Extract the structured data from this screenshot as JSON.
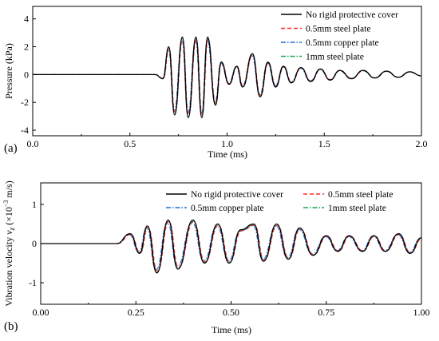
{
  "figure": {
    "panel_a": "(a)",
    "panel_b": "(b)"
  },
  "chart_data": [
    {
      "type": "line",
      "xlabel": "Time (ms)",
      "ylabel": "Pressure (kPa)",
      "xlim": [
        0.0,
        2.0
      ],
      "ylim": [
        -4.4,
        4.9
      ],
      "xticks": [
        "0.0",
        "0.5",
        "1.0",
        "1.5",
        "2.0"
      ],
      "yticks": [
        "4",
        "2",
        "0",
        "-2",
        "-4"
      ],
      "ytick_values": [
        4,
        2,
        0,
        -2,
        -4
      ],
      "xtick_values": [
        0.0,
        0.5,
        1.0,
        1.5,
        2.0
      ],
      "legend_position": "top-right",
      "series": [
        {
          "name": "No rigid protective cover",
          "color": "#000000",
          "dash": "solid"
        },
        {
          "name": "0.5mm steel plate",
          "color": "#ff2a2a",
          "dash": "dashed"
        },
        {
          "name": "0.5mm copper plate",
          "color": "#1f6fd1",
          "dash": "dashdot"
        },
        {
          "name": "1mm steel plate",
          "color": "#1aa35a",
          "dash": "dashdot"
        }
      ],
      "peaks": [
        {
          "x": 0.63,
          "y": 0.0
        },
        {
          "x": 0.67,
          "y": -0.3
        },
        {
          "x": 0.7,
          "y": 2.0
        },
        {
          "x": 0.73,
          "y": -2.9
        },
        {
          "x": 0.77,
          "y": 2.7
        },
        {
          "x": 0.8,
          "y": -3.1
        },
        {
          "x": 0.84,
          "y": 2.7
        },
        {
          "x": 0.87,
          "y": -3.1
        },
        {
          "x": 0.9,
          "y": 2.7
        },
        {
          "x": 0.94,
          "y": -2.2
        },
        {
          "x": 0.97,
          "y": 0.9
        },
        {
          "x": 1.01,
          "y": -0.7
        },
        {
          "x": 1.05,
          "y": 0.6
        },
        {
          "x": 1.08,
          "y": -0.9
        },
        {
          "x": 1.13,
          "y": 1.5
        },
        {
          "x": 1.17,
          "y": -1.6
        },
        {
          "x": 1.21,
          "y": 0.9
        },
        {
          "x": 1.25,
          "y": -0.9
        },
        {
          "x": 1.29,
          "y": 0.6
        },
        {
          "x": 1.33,
          "y": -0.6
        },
        {
          "x": 1.38,
          "y": 0.5
        },
        {
          "x": 1.43,
          "y": -0.5
        },
        {
          "x": 1.48,
          "y": 0.4
        },
        {
          "x": 1.53,
          "y": -0.4
        },
        {
          "x": 1.58,
          "y": 0.3
        },
        {
          "x": 1.64,
          "y": -0.3
        },
        {
          "x": 1.7,
          "y": 0.3
        },
        {
          "x": 1.76,
          "y": -0.25
        },
        {
          "x": 1.82,
          "y": 0.25
        },
        {
          "x": 1.88,
          "y": -0.2
        },
        {
          "x": 1.94,
          "y": 0.2
        },
        {
          "x": 2.0,
          "y": -0.1
        }
      ]
    },
    {
      "type": "line",
      "xlabel": "Time (ms)",
      "ylabel": "Vibration velocity v_z (×10⁻³ m/s)",
      "ylabel_main": "Vibration velocity ",
      "ylabel_var": "v",
      "ylabel_sub": "z",
      "ylabel_unit": " (×10",
      "ylabel_exp": "−3",
      "ylabel_end": " m/s)",
      "xlim": [
        0.0,
        1.0
      ],
      "ylim": [
        -1.55,
        1.55
      ],
      "xticks": [
        "0.00",
        "0.25",
        "0.50",
        "0.75",
        "1.00"
      ],
      "xtick_values": [
        0.0,
        0.25,
        0.5,
        0.75,
        1.0
      ],
      "yticks": [
        "1",
        "0",
        "-1"
      ],
      "ytick_values": [
        1,
        0,
        -1
      ],
      "legend_position": "top",
      "series": [
        {
          "name": "No rigid protective cover",
          "color": "#000000",
          "dash": "solid"
        },
        {
          "name": "0.5mm steel plate",
          "color": "#ff2a2a",
          "dash": "dashed"
        },
        {
          "name": "0.5mm copper plate",
          "color": "#1f6fd1",
          "dash": "dashdot"
        },
        {
          "name": "1mm steel plate",
          "color": "#1aa35a",
          "dash": "dashdot"
        }
      ],
      "peaks": [
        {
          "x": 0.2,
          "y": 0.0
        },
        {
          "x": 0.235,
          "y": 0.25
        },
        {
          "x": 0.26,
          "y": -0.25
        },
        {
          "x": 0.28,
          "y": 0.45
        },
        {
          "x": 0.305,
          "y": -0.75
        },
        {
          "x": 0.335,
          "y": 0.6
        },
        {
          "x": 0.36,
          "y": -0.65
        },
        {
          "x": 0.4,
          "y": 0.6
        },
        {
          "x": 0.43,
          "y": -0.5
        },
        {
          "x": 0.465,
          "y": 0.5
        },
        {
          "x": 0.495,
          "y": -0.5
        },
        {
          "x": 0.525,
          "y": 0.35
        },
        {
          "x": 0.56,
          "y": 0.5
        },
        {
          "x": 0.585,
          "y": -0.45
        },
        {
          "x": 0.62,
          "y": 0.5
        },
        {
          "x": 0.65,
          "y": -0.4
        },
        {
          "x": 0.68,
          "y": 0.4
        },
        {
          "x": 0.715,
          "y": -0.3
        },
        {
          "x": 0.75,
          "y": 0.2
        },
        {
          "x": 0.78,
          "y": -0.2
        },
        {
          "x": 0.81,
          "y": 0.2
        },
        {
          "x": 0.845,
          "y": -0.2
        },
        {
          "x": 0.875,
          "y": 0.2
        },
        {
          "x": 0.905,
          "y": -0.2
        },
        {
          "x": 0.94,
          "y": 0.25
        },
        {
          "x": 0.97,
          "y": -0.25
        },
        {
          "x": 1.0,
          "y": 0.15
        }
      ]
    }
  ]
}
